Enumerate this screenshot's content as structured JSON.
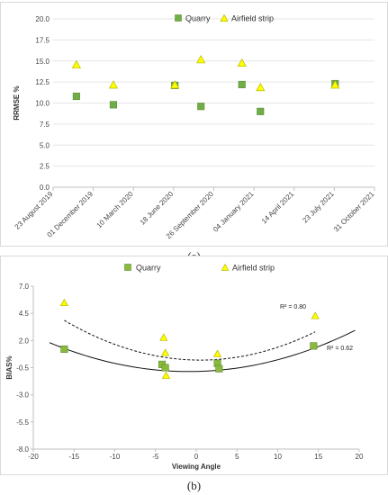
{
  "captions": {
    "a": "(a)",
    "b": "(b)"
  },
  "colors": {
    "quarry": "#70ad47",
    "quarry_b": "#8cb83c",
    "airfield": "#ffff00",
    "airfield_stroke": "#b8b800",
    "grid": "#e6e6e6",
    "axis": "#bfbfbf"
  },
  "icons": {
    "quarry_marker": "square-marker-icon",
    "airfield_marker": "triangle-marker-icon"
  },
  "chart_data": [
    {
      "type": "scatter",
      "title": "",
      "xlabel": "",
      "ylabel": "RRMSE %",
      "ylim": [
        0,
        20
      ],
      "yticks": [
        "0.0",
        "2.5",
        "5.0",
        "7.5",
        "10.0",
        "12.5",
        "15.0",
        "17.5",
        "20.0"
      ],
      "xlim": [
        "2019-08-23",
        "2021-10-31"
      ],
      "xticks": [
        "23 August 2019",
        "01 December 2019",
        "10 March 2020",
        "18 June 2020",
        "26 September 2020",
        "04 January 2021",
        "14 April 2021",
        "23 July 2021",
        "31 October 2021"
      ],
      "grid": "horizontal",
      "legend_position": "top-right",
      "series": [
        {
          "name": "Quarry",
          "marker": "square",
          "x": [
            "2019-10-20",
            "2020-01-20",
            "2020-06-21",
            "2020-08-25",
            "2020-12-05",
            "2021-01-20",
            "2021-07-25"
          ],
          "y": [
            10.8,
            9.8,
            12.1,
            9.6,
            12.2,
            9.0,
            12.3
          ]
        },
        {
          "name": "Airfield strip",
          "marker": "triangle",
          "x": [
            "2019-10-20",
            "2020-01-20",
            "2020-06-21",
            "2020-08-25",
            "2020-12-05",
            "2021-01-20",
            "2021-07-25"
          ],
          "y": [
            14.6,
            12.2,
            12.2,
            15.2,
            14.8,
            11.9,
            12.2
          ]
        }
      ]
    },
    {
      "type": "scatter",
      "title": "",
      "xlabel": "Viewing Angle",
      "ylabel": "BIAS%",
      "xlim": [
        -20,
        20
      ],
      "xticks": [
        "-20",
        "-15",
        "-10",
        "-5",
        "0",
        "5",
        "10",
        "15",
        "20"
      ],
      "ylim": [
        -8,
        7
      ],
      "yticks": [
        "-8.0",
        "-5.5",
        "-3.0",
        "-0.5",
        "2.0",
        "4.5",
        "7.0"
      ],
      "grid": "none",
      "legend_position": "top-center",
      "series": [
        {
          "name": "Quarry",
          "marker": "square",
          "x": [
            -16.2,
            -4.2,
            -3.8,
            2.6,
            2.8,
            14.4
          ],
          "y": [
            1.2,
            -0.2,
            -0.5,
            -0.1,
            -0.6,
            1.5
          ]
        },
        {
          "name": "Airfield strip",
          "marker": "triangle",
          "x": [
            -16.2,
            -4.0,
            -3.8,
            -3.7,
            2.6,
            14.6
          ],
          "y": [
            5.5,
            2.3,
            0.9,
            -1.2,
            0.8,
            4.3
          ]
        }
      ],
      "trendlines": [
        {
          "series": "Airfield strip",
          "kind": "poly2",
          "style": "dashed",
          "coef": [
            0.0131,
            -0.0133,
            0.2
          ],
          "x_range": [
            -16.2,
            14.6
          ],
          "label": "R² = 0.80"
        },
        {
          "series": "Quarry",
          "kind": "poly2",
          "style": "solid",
          "coef": [
            0.0091,
            0.0165,
            -0.85
          ],
          "x_range": [
            -18,
            19.5
          ],
          "label": "R² = 0.62"
        }
      ]
    }
  ]
}
